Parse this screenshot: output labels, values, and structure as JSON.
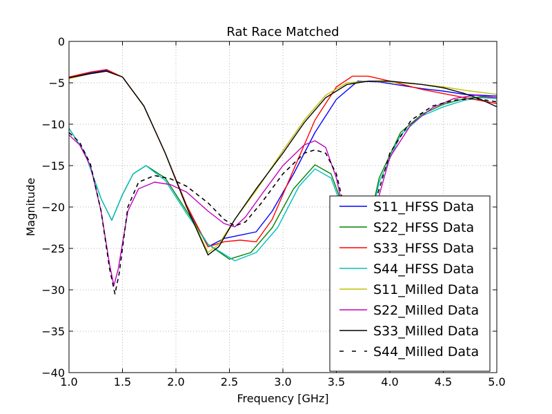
{
  "chart_data": {
    "type": "line",
    "title": "Rat Race Matched",
    "xlabel": "Frequency [GHz]",
    "ylabel": "Magnitude",
    "xlim": [
      1.0,
      5.0
    ],
    "ylim": [
      -40,
      0
    ],
    "x_ticks": [
      "1.0",
      "1.5",
      "2.0",
      "2.5",
      "3.0",
      "3.5",
      "4.0",
      "4.5",
      "5.0"
    ],
    "y_ticks": [
      "0",
      "−5",
      "−10",
      "−15",
      "−20",
      "−25",
      "−30",
      "−35",
      "−40"
    ],
    "grid": true,
    "legend_position": "lower-right",
    "series": [
      {
        "name": "S11_HFSS Data",
        "color": "#0000ff",
        "dash": "solid",
        "points": [
          [
            1.0,
            -4.4
          ],
          [
            1.2,
            -3.8
          ],
          [
            1.35,
            -3.5
          ],
          [
            1.5,
            -4.3
          ],
          [
            1.7,
            -7.8
          ],
          [
            1.9,
            -13.5
          ],
          [
            2.1,
            -20.0
          ],
          [
            2.3,
            -24.8
          ],
          [
            2.45,
            -23.8
          ],
          [
            2.6,
            -23.4
          ],
          [
            2.75,
            -23.0
          ],
          [
            2.9,
            -20.5
          ],
          [
            3.1,
            -16.0
          ],
          [
            3.3,
            -11.0
          ],
          [
            3.5,
            -7.0
          ],
          [
            3.7,
            -4.8
          ],
          [
            3.9,
            -4.9
          ],
          [
            4.1,
            -5.3
          ],
          [
            4.3,
            -5.7
          ],
          [
            4.5,
            -6.0
          ],
          [
            4.7,
            -6.4
          ],
          [
            5.0,
            -6.6
          ]
        ]
      },
      {
        "name": "S22_HFSS Data",
        "color": "#008000",
        "dash": "solid",
        "points": [
          [
            1.0,
            -10.5
          ],
          [
            1.15,
            -13.5
          ],
          [
            1.3,
            -19.0
          ],
          [
            1.4,
            -21.6
          ],
          [
            1.5,
            -18.5
          ],
          [
            1.6,
            -16.0
          ],
          [
            1.72,
            -15.0
          ],
          [
            1.9,
            -16.5
          ],
          [
            2.1,
            -20.5
          ],
          [
            2.3,
            -24.5
          ],
          [
            2.5,
            -26.3
          ],
          [
            2.7,
            -25.5
          ],
          [
            2.9,
            -22.5
          ],
          [
            3.1,
            -17.8
          ],
          [
            3.3,
            -14.9
          ],
          [
            3.45,
            -16.0
          ],
          [
            3.55,
            -19.5
          ],
          [
            3.65,
            -25.5
          ],
          [
            3.72,
            -31.0
          ],
          [
            3.78,
            -23.5
          ],
          [
            3.9,
            -16.5
          ],
          [
            4.1,
            -11.0
          ],
          [
            4.3,
            -8.8
          ],
          [
            4.5,
            -7.6
          ],
          [
            4.7,
            -6.9
          ],
          [
            4.85,
            -6.7
          ],
          [
            5.0,
            -6.9
          ]
        ]
      },
      {
        "name": "S33_HFSS Data",
        "color": "#ff0000",
        "dash": "solid",
        "points": [
          [
            1.0,
            -4.3
          ],
          [
            1.2,
            -3.7
          ],
          [
            1.35,
            -3.4
          ],
          [
            1.5,
            -4.3
          ],
          [
            1.7,
            -7.8
          ],
          [
            1.9,
            -13.5
          ],
          [
            2.1,
            -19.8
          ],
          [
            2.3,
            -24.8
          ],
          [
            2.45,
            -24.2
          ],
          [
            2.6,
            -24.0
          ],
          [
            2.75,
            -24.2
          ],
          [
            2.9,
            -21.5
          ],
          [
            3.1,
            -15.5
          ],
          [
            3.3,
            -9.5
          ],
          [
            3.5,
            -5.5
          ],
          [
            3.65,
            -4.2
          ],
          [
            3.8,
            -4.2
          ],
          [
            4.0,
            -4.8
          ],
          [
            4.3,
            -5.8
          ],
          [
            4.5,
            -6.3
          ],
          [
            4.7,
            -6.8
          ],
          [
            5.0,
            -7.5
          ]
        ]
      },
      {
        "name": "S44_HFSS Data",
        "color": "#00bfbf",
        "dash": "solid",
        "points": [
          [
            1.0,
            -10.5
          ],
          [
            1.15,
            -13.5
          ],
          [
            1.3,
            -19.0
          ],
          [
            1.4,
            -21.6
          ],
          [
            1.5,
            -18.5
          ],
          [
            1.6,
            -16.0
          ],
          [
            1.72,
            -15.0
          ],
          [
            1.9,
            -16.8
          ],
          [
            2.1,
            -20.8
          ],
          [
            2.3,
            -24.5
          ],
          [
            2.55,
            -26.5
          ],
          [
            2.75,
            -25.5
          ],
          [
            2.95,
            -22.5
          ],
          [
            3.15,
            -17.5
          ],
          [
            3.3,
            -15.4
          ],
          [
            3.45,
            -16.5
          ],
          [
            3.55,
            -20.0
          ],
          [
            3.65,
            -26.0
          ],
          [
            3.72,
            -31.5
          ],
          [
            3.78,
            -24.0
          ],
          [
            3.9,
            -17.0
          ],
          [
            4.1,
            -11.3
          ],
          [
            4.3,
            -9.0
          ],
          [
            4.5,
            -7.9
          ],
          [
            4.7,
            -7.1
          ],
          [
            4.85,
            -6.8
          ],
          [
            5.0,
            -6.9
          ]
        ]
      },
      {
        "name": "S11_Milled Data",
        "color": "#bfbf00",
        "dash": "solid",
        "points": [
          [
            1.0,
            -4.5
          ],
          [
            1.2,
            -3.9
          ],
          [
            1.35,
            -3.6
          ],
          [
            1.5,
            -4.3
          ],
          [
            1.7,
            -7.8
          ],
          [
            1.9,
            -13.5
          ],
          [
            2.1,
            -20.0
          ],
          [
            2.3,
            -25.5
          ],
          [
            2.4,
            -24.5
          ],
          [
            2.55,
            -21.5
          ],
          [
            2.75,
            -18.0
          ],
          [
            3.0,
            -13.2
          ],
          [
            3.2,
            -9.5
          ],
          [
            3.4,
            -6.5
          ],
          [
            3.6,
            -5.0
          ],
          [
            3.8,
            -4.8
          ],
          [
            4.0,
            -4.9
          ],
          [
            4.3,
            -5.2
          ],
          [
            4.5,
            -5.5
          ],
          [
            4.7,
            -5.9
          ],
          [
            5.0,
            -6.4
          ]
        ]
      },
      {
        "name": "S22_Milled Data",
        "color": "#bf00bf",
        "dash": "solid",
        "points": [
          [
            1.0,
            -11.3
          ],
          [
            1.1,
            -12.5
          ],
          [
            1.2,
            -15.0
          ],
          [
            1.3,
            -20.5
          ],
          [
            1.38,
            -27.0
          ],
          [
            1.42,
            -29.5
          ],
          [
            1.46,
            -27.5
          ],
          [
            1.55,
            -20.5
          ],
          [
            1.65,
            -17.8
          ],
          [
            1.8,
            -17.0
          ],
          [
            1.95,
            -17.3
          ],
          [
            2.1,
            -18.2
          ],
          [
            2.3,
            -20.5
          ],
          [
            2.45,
            -22.0
          ],
          [
            2.55,
            -22.4
          ],
          [
            2.65,
            -21.2
          ],
          [
            2.8,
            -18.5
          ],
          [
            3.0,
            -15.0
          ],
          [
            3.2,
            -12.5
          ],
          [
            3.3,
            -12.0
          ],
          [
            3.4,
            -12.8
          ],
          [
            3.5,
            -16.5
          ],
          [
            3.6,
            -22.5
          ],
          [
            3.68,
            -30.0
          ],
          [
            3.72,
            -39.8
          ],
          [
            3.78,
            -28.0
          ],
          [
            3.88,
            -19.5
          ],
          [
            4.0,
            -14.0
          ],
          [
            4.2,
            -10.0
          ],
          [
            4.4,
            -8.0
          ],
          [
            4.6,
            -6.9
          ],
          [
            4.8,
            -6.5
          ],
          [
            5.0,
            -6.8
          ]
        ]
      },
      {
        "name": "S33_Milled Data",
        "color": "#000000",
        "dash": "solid",
        "points": [
          [
            1.0,
            -4.4
          ],
          [
            1.2,
            -3.9
          ],
          [
            1.35,
            -3.6
          ],
          [
            1.5,
            -4.3
          ],
          [
            1.7,
            -7.8
          ],
          [
            1.9,
            -13.5
          ],
          [
            2.1,
            -20.0
          ],
          [
            2.3,
            -25.8
          ],
          [
            2.4,
            -24.8
          ],
          [
            2.55,
            -21.5
          ],
          [
            2.75,
            -17.8
          ],
          [
            3.0,
            -13.5
          ],
          [
            3.2,
            -9.8
          ],
          [
            3.4,
            -6.8
          ],
          [
            3.6,
            -5.2
          ],
          [
            3.8,
            -4.8
          ],
          [
            4.0,
            -4.8
          ],
          [
            4.3,
            -5.2
          ],
          [
            4.5,
            -5.6
          ],
          [
            4.7,
            -6.3
          ],
          [
            4.85,
            -7.0
          ],
          [
            5.0,
            -7.9
          ]
        ]
      },
      {
        "name": "S44_Milled Data",
        "color": "#000000",
        "dash": "dashed",
        "points": [
          [
            1.0,
            -11.0
          ],
          [
            1.1,
            -12.2
          ],
          [
            1.2,
            -14.8
          ],
          [
            1.3,
            -20.5
          ],
          [
            1.38,
            -27.5
          ],
          [
            1.43,
            -30.5
          ],
          [
            1.47,
            -28.0
          ],
          [
            1.55,
            -20.0
          ],
          [
            1.65,
            -17.0
          ],
          [
            1.8,
            -16.2
          ],
          [
            1.95,
            -16.6
          ],
          [
            2.1,
            -17.5
          ],
          [
            2.3,
            -19.5
          ],
          [
            2.45,
            -21.5
          ],
          [
            2.55,
            -22.3
          ],
          [
            2.65,
            -21.8
          ],
          [
            2.8,
            -19.5
          ],
          [
            3.0,
            -16.0
          ],
          [
            3.2,
            -13.5
          ],
          [
            3.3,
            -13.1
          ],
          [
            3.4,
            -13.5
          ],
          [
            3.5,
            -16.0
          ],
          [
            3.6,
            -21.5
          ],
          [
            3.68,
            -28.0
          ],
          [
            3.72,
            -31.5
          ],
          [
            3.76,
            -27.0
          ],
          [
            3.85,
            -20.0
          ],
          [
            4.0,
            -13.5
          ],
          [
            4.2,
            -9.5
          ],
          [
            4.4,
            -7.8
          ],
          [
            4.6,
            -7.1
          ],
          [
            4.8,
            -6.9
          ],
          [
            5.0,
            -7.3
          ]
        ]
      }
    ]
  }
}
